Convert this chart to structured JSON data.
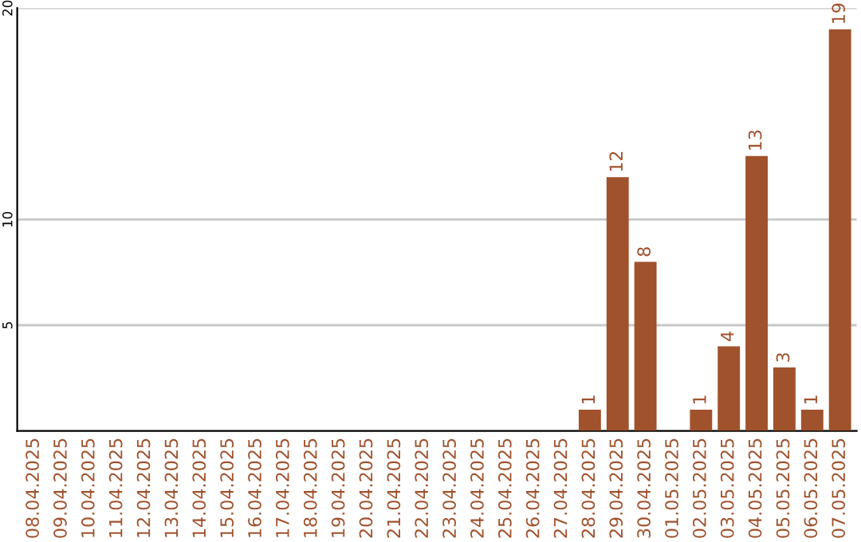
{
  "chart_data": {
    "type": "bar",
    "categories": [
      "08.04.2025",
      "09.04.2025",
      "10.04.2025",
      "11.04.2025",
      "12.04.2025",
      "13.04.2025",
      "14.04.2025",
      "15.04.2025",
      "16.04.2025",
      "17.04.2025",
      "18.04.2025",
      "19.04.2025",
      "20.04.2025",
      "21.04.2025",
      "22.04.2025",
      "23.04.2025",
      "24.04.2025",
      "25.04.2025",
      "26.04.2025",
      "27.04.2025",
      "28.04.2025",
      "29.04.2025",
      "30.04.2025",
      "01.05.2025",
      "02.05.2025",
      "03.05.2025",
      "04.05.2025",
      "05.05.2025",
      "06.05.2025",
      "07.05.2025"
    ],
    "values": [
      0,
      0,
      0,
      0,
      0,
      0,
      0,
      0,
      0,
      0,
      0,
      0,
      0,
      0,
      0,
      0,
      0,
      0,
      0,
      0,
      1,
      12,
      8,
      0,
      1,
      4,
      13,
      3,
      1,
      19
    ],
    "value_labels": [
      null,
      null,
      null,
      null,
      null,
      null,
      null,
      null,
      null,
      null,
      null,
      null,
      null,
      null,
      null,
      null,
      null,
      null,
      null,
      null,
      "1",
      "12",
      "8",
      null,
      "1",
      "4",
      "13",
      "3",
      "1",
      "19"
    ],
    "color": "#a0522d",
    "ylim": [
      0,
      20
    ],
    "yticks": [
      5,
      10,
      20
    ],
    "grid": "y"
  }
}
